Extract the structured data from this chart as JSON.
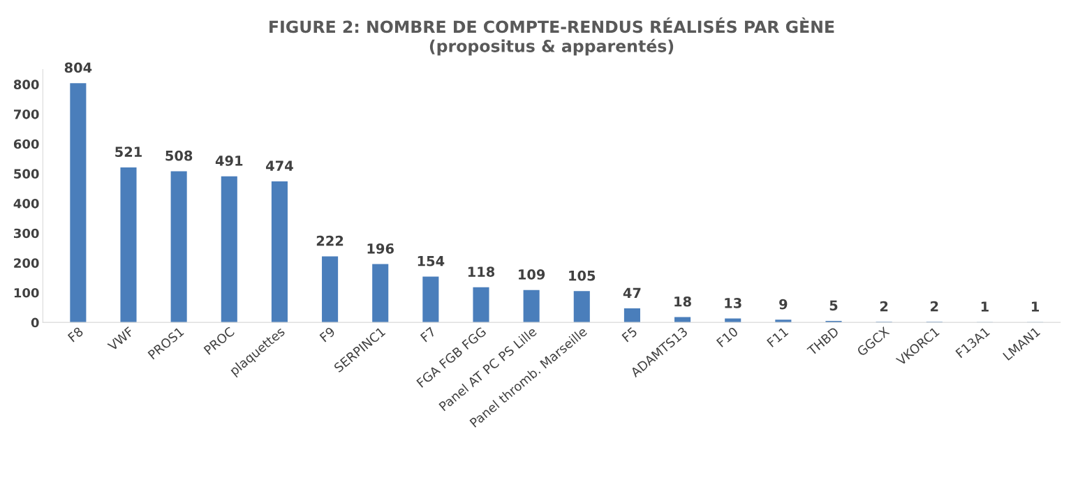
{
  "chart_data": {
    "type": "bar",
    "title": "FIGURE 2: NOMBRE DE COMPTE-RENDUS RÉALISÉS PAR GÈNE\n(propositus & apparentés)",
    "categories": [
      "F8",
      "VWF",
      "PROS1",
      "PROC",
      "plaquettes",
      "F9",
      "SERPINC1",
      "F7",
      "FGA FGB FGG",
      "Panel AT PC PS Lille",
      "Panel thromb. Marseille",
      "F5",
      "ADAMTS13",
      "F10",
      "F11",
      "THBD",
      "GGCX",
      "VKORC1",
      "F13A1",
      "LMAN1"
    ],
    "values": [
      804,
      521,
      508,
      491,
      474,
      222,
      196,
      154,
      118,
      109,
      105,
      47,
      18,
      13,
      9,
      5,
      2,
      2,
      1,
      1
    ],
    "color": "#4a7ebb",
    "data_labels": true,
    "grid": false,
    "ylim": [
      0,
      850
    ],
    "yticks": [
      0,
      100,
      200,
      300,
      400,
      500,
      600,
      700,
      800
    ]
  }
}
